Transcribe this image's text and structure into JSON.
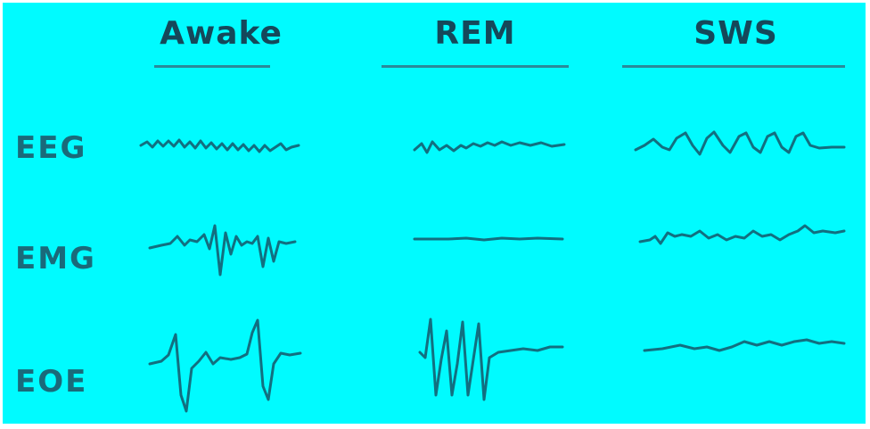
{
  "columns": [
    {
      "id": "awake",
      "label": "Awake"
    },
    {
      "id": "rem",
      "label": "REM"
    },
    {
      "id": "sws",
      "label": "SWS"
    }
  ],
  "rows": [
    {
      "id": "eeg",
      "label": "EEG"
    },
    {
      "id": "emg",
      "label": "EMG"
    },
    {
      "id": "eoe",
      "label": "EOE"
    }
  ],
  "colors": {
    "background": "#00fbff",
    "trace": "#126f80",
    "title_text": "#15485a",
    "label_text": "#1a6a7a",
    "rule": "#2a8a9a"
  }
}
